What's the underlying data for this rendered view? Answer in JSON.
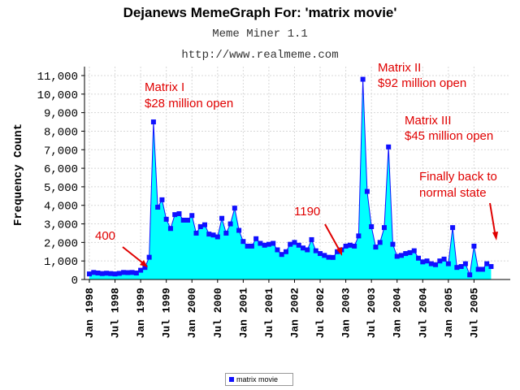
{
  "header": {
    "title": "Dejanews MemeGraph For: 'matrix movie'",
    "subtitle": "Meme Miner 1.1",
    "url": "http://www.realmeme.com"
  },
  "chart_data": {
    "type": "area",
    "title": "Dejanews MemeGraph For: 'matrix movie'",
    "ylabel": "Frequency Count",
    "xlabel": "",
    "ylim": [
      0,
      11000
    ],
    "yticks": [
      0,
      1000,
      2000,
      3000,
      4000,
      5000,
      6000,
      7000,
      8000,
      9000,
      10000,
      11000
    ],
    "ytick_labels": [
      "0",
      "1,000",
      "2,000",
      "3,000",
      "4,000",
      "5,000",
      "6,000",
      "7,000",
      "8,000",
      "9,000",
      "10,000",
      "11,000"
    ],
    "x_tick_labels": [
      "Jan 1998",
      "Jul 1998",
      "Jan 1999",
      "Jul 1999",
      "Jan 2000",
      "Jul 2000",
      "Jan 2001",
      "Jul 2001",
      "Jan 2002",
      "Jul 2002",
      "Jan 2003",
      "Jul 2003",
      "Jan 2004",
      "Jul 2004",
      "Jan 2005",
      "Jul 2005"
    ],
    "x_start": "1998-01",
    "x_step": "month",
    "grid": true,
    "legend": "bottom-center",
    "colors": {
      "fill": "#00ffff",
      "line": "#1010ff",
      "marker": "#1010ff",
      "annotation": "#e00000"
    },
    "series": [
      {
        "name": "matrix movie",
        "values": [
          300,
          380,
          350,
          320,
          340,
          320,
          300,
          330,
          380,
          370,
          380,
          350,
          500,
          650,
          1200,
          8500,
          3900,
          4300,
          3250,
          2750,
          3500,
          3550,
          3200,
          3200,
          3450,
          2500,
          2850,
          2950,
          2450,
          2400,
          2300,
          3300,
          2500,
          3000,
          3850,
          2650,
          2050,
          1800,
          1800,
          2200,
          1950,
          1850,
          1900,
          1950,
          1600,
          1350,
          1500,
          1900,
          2000,
          1850,
          1700,
          1600,
          2150,
          1550,
          1400,
          1300,
          1200,
          1190,
          1500,
          1600,
          1800,
          1850,
          1800,
          2350,
          10800,
          4750,
          2850,
          1750,
          2000,
          2800,
          7150,
          1900,
          1250,
          1300,
          1400,
          1450,
          1550,
          1150,
          950,
          1000,
          850,
          800,
          1000,
          1100,
          850,
          2800,
          650,
          700,
          850,
          250,
          1800,
          550,
          550,
          850,
          700
        ]
      }
    ],
    "annotations": [
      {
        "text": "400"
      },
      {
        "text": "Matrix I"
      },
      {
        "text": "$28 million open"
      },
      {
        "text": "1190"
      },
      {
        "text": "Matrix II"
      },
      {
        "text": "$92 million open"
      },
      {
        "text": "Matrix III"
      },
      {
        "text": "$45 million open"
      },
      {
        "text": "Finally back to"
      },
      {
        "text": "normal state"
      }
    ]
  }
}
